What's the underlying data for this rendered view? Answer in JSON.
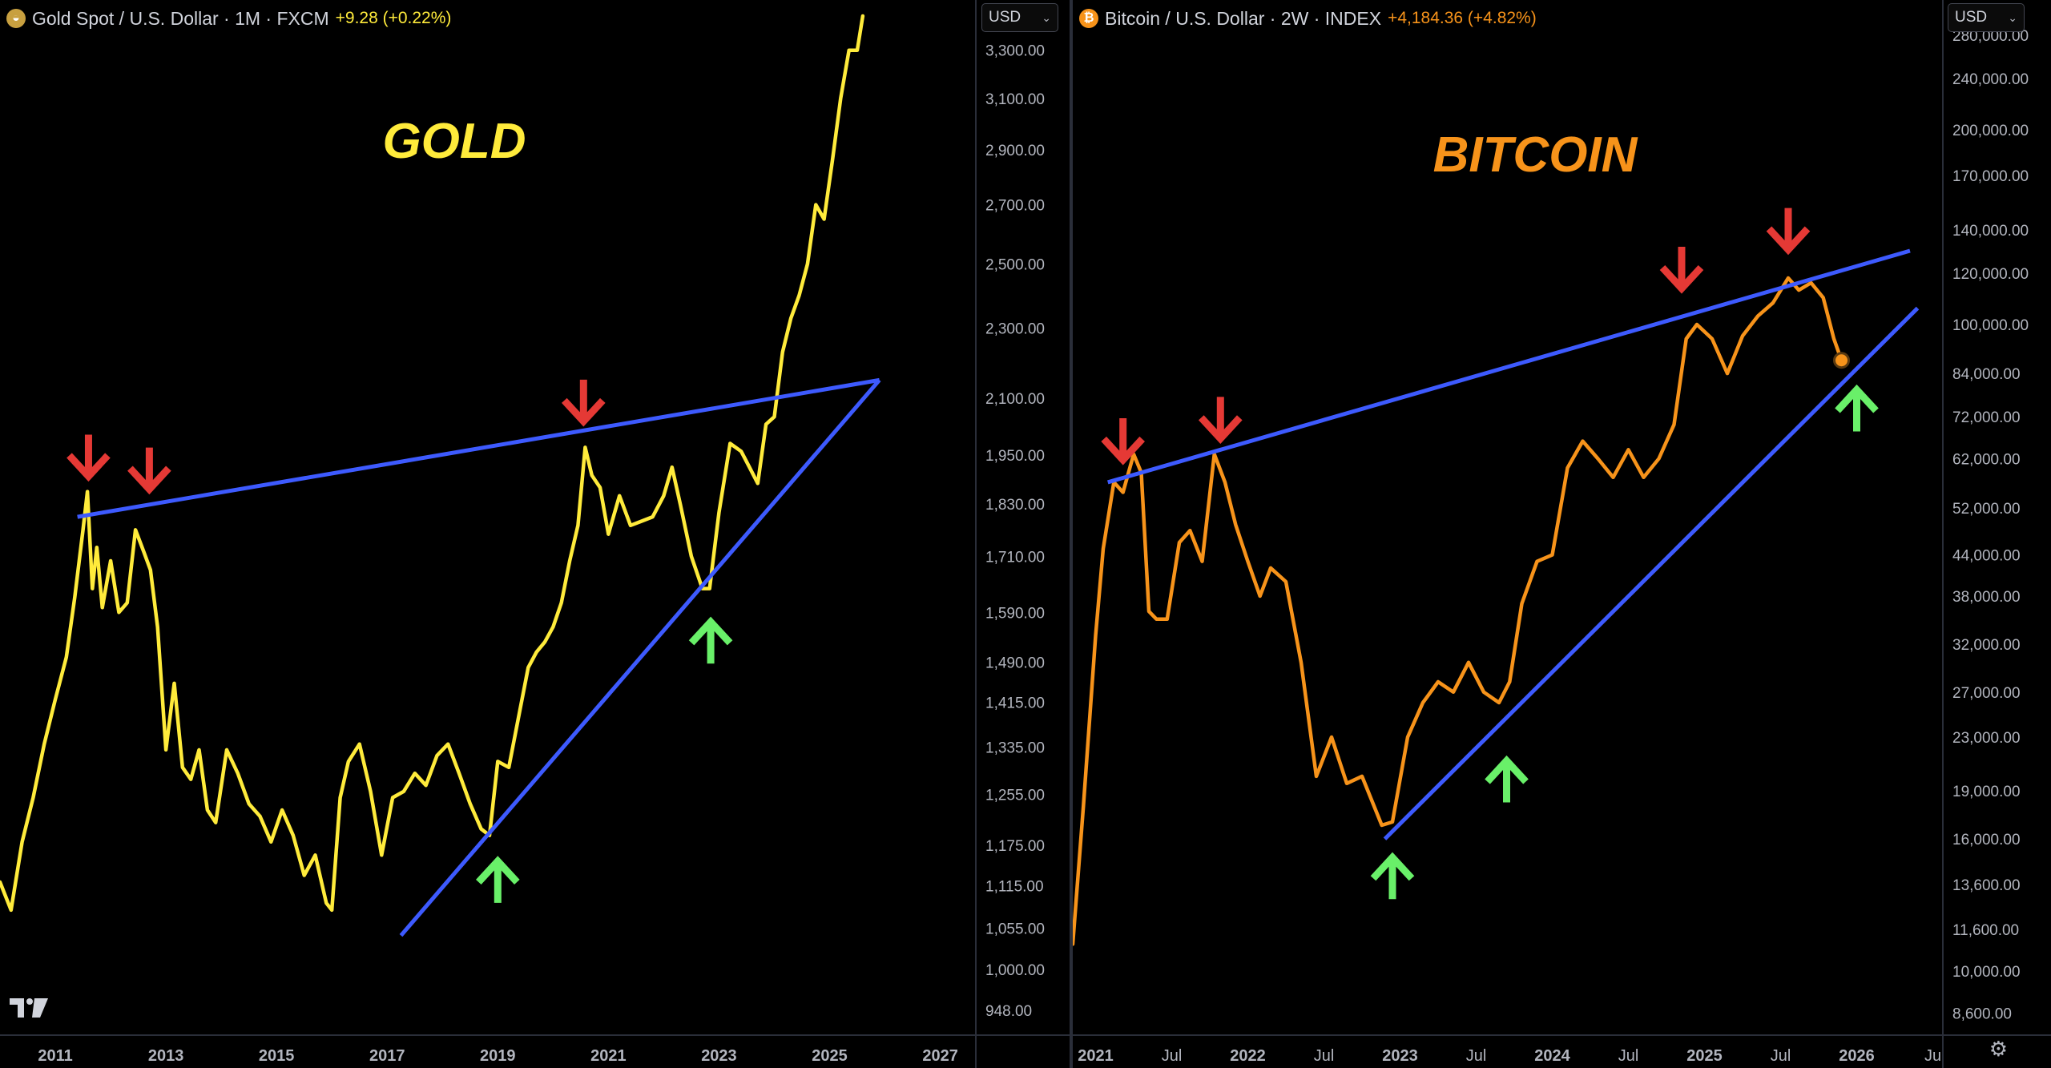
{
  "left": {
    "header": {
      "symbol": "Gold Spot / U.S. Dollar · 1M · FXCM",
      "change": "+9.28 (+0.22%)",
      "change_color": "#ffeb3b"
    },
    "currency": "USD",
    "label": "GOLD",
    "label_color": "#ffeb3b",
    "line_color": "#ffeb3b",
    "yaxis": [
      "3,300.00",
      "3,100.00",
      "2,900.00",
      "2,700.00",
      "2,500.00",
      "2,300.00",
      "2,100.00",
      "1,950.00",
      "1,830.00",
      "1,710.00",
      "1,590.00",
      "1,490.00",
      "1,415.00",
      "1,335.00",
      "1,255.00",
      "1,175.00",
      "1,115.00",
      "1,055.00",
      "1,000.00",
      "948.00"
    ],
    "xaxis": [
      "2011",
      "2013",
      "2015",
      "2017",
      "2019",
      "2021",
      "2023",
      "2025",
      "2027"
    ]
  },
  "right": {
    "header": {
      "symbol": "Bitcoin / U.S. Dollar · 2W · INDEX",
      "change": "+4,184.36 (+4.82%)",
      "change_color": "#f7931a"
    },
    "currency": "USD",
    "label": "BITCOIN",
    "label_color": "#f7931a",
    "line_color": "#f7931a",
    "yaxis": [
      "280,000.00",
      "240,000.00",
      "200,000.00",
      "170,000.00",
      "140,000.00",
      "120,000.00",
      "100,000.00",
      "84,000.00",
      "72,000.00",
      "62,000.00",
      "52,000.00",
      "44,000.00",
      "38,000.00",
      "32,000.00",
      "27,000.00",
      "23,000.00",
      "19,000.00",
      "16,000.00",
      "13,600.00",
      "11,600.00",
      "10,000.00",
      "8,600.00"
    ],
    "xaxis": [
      "2021",
      "Jul",
      "2022",
      "Jul",
      "2023",
      "Jul",
      "2024",
      "Jul",
      "2025",
      "Jul",
      "2026",
      "Ju"
    ]
  },
  "chart_data": [
    {
      "type": "line",
      "title": "Gold Spot / U.S. Dollar · 1M · FXCM",
      "scale": "log",
      "ylim": [
        920,
        3450
      ],
      "xlim": [
        2010.0,
        2027.6
      ],
      "series": [
        {
          "name": "GOLD",
          "color": "#ffeb3b",
          "x": [
            2010.0,
            2010.2,
            2010.4,
            2010.6,
            2010.8,
            2011.0,
            2011.2,
            2011.35,
            2011.5,
            2011.58,
            2011.67,
            2011.75,
            2011.85,
            2012.0,
            2012.15,
            2012.3,
            2012.45,
            2012.6,
            2012.72,
            2012.85,
            2013.0,
            2013.15,
            2013.3,
            2013.45,
            2013.6,
            2013.75,
            2013.9,
            2014.1,
            2014.3,
            2014.5,
            2014.7,
            2014.9,
            2015.1,
            2015.3,
            2015.5,
            2015.7,
            2015.9,
            2016.0,
            2016.15,
            2016.3,
            2016.5,
            2016.7,
            2016.9,
            2017.1,
            2017.3,
            2017.5,
            2017.7,
            2017.9,
            2018.1,
            2018.3,
            2018.5,
            2018.7,
            2018.85,
            2019.0,
            2019.2,
            2019.4,
            2019.55,
            2019.7,
            2019.85,
            2020.0,
            2020.15,
            2020.3,
            2020.45,
            2020.58,
            2020.7,
            2020.85,
            2021.0,
            2021.2,
            2021.4,
            2021.6,
            2021.8,
            2022.0,
            2022.15,
            2022.3,
            2022.5,
            2022.7,
            2022.83,
            2023.0,
            2023.2,
            2023.4,
            2023.55,
            2023.7,
            2023.85,
            2024.0,
            2024.15,
            2024.3,
            2024.45,
            2024.6,
            2024.75,
            2024.9,
            2025.05,
            2025.2,
            2025.35,
            2025.5,
            2025.6
          ],
          "y": [
            1120,
            1080,
            1180,
            1250,
            1340,
            1420,
            1500,
            1620,
            1770,
            1860,
            1640,
            1730,
            1600,
            1700,
            1590,
            1610,
            1770,
            1720,
            1680,
            1560,
            1330,
            1450,
            1300,
            1280,
            1330,
            1230,
            1210,
            1330,
            1290,
            1240,
            1220,
            1180,
            1230,
            1190,
            1130,
            1160,
            1090,
            1080,
            1250,
            1310,
            1340,
            1260,
            1160,
            1250,
            1260,
            1290,
            1270,
            1320,
            1340,
            1290,
            1240,
            1200,
            1190,
            1310,
            1300,
            1400,
            1480,
            1510,
            1530,
            1560,
            1610,
            1700,
            1780,
            1970,
            1900,
            1870,
            1760,
            1850,
            1780,
            1790,
            1800,
            1850,
            1920,
            1830,
            1710,
            1640,
            1640,
            1810,
            1980,
            1960,
            1920,
            1880,
            2030,
            2050,
            2230,
            2330,
            2400,
            2500,
            2700,
            2650,
            2860,
            3100,
            3300,
            3300,
            3450
          ]
        }
      ]
    },
    {
      "type": "line",
      "title": "Bitcoin / U.S. Dollar · 2W · INDEX",
      "scale": "log",
      "ylim": [
        8000,
        300000
      ],
      "xlim": [
        2020.85,
        2026.55
      ],
      "series": [
        {
          "name": "BITCOIN",
          "color": "#f7931a",
          "x": [
            2020.85,
            2020.92,
            2021.0,
            2021.05,
            2021.12,
            2021.18,
            2021.25,
            2021.3,
            2021.35,
            2021.4,
            2021.47,
            2021.55,
            2021.62,
            2021.7,
            2021.78,
            2021.85,
            2021.92,
            2022.0,
            2022.08,
            2022.15,
            2022.25,
            2022.35,
            2022.45,
            2022.55,
            2022.65,
            2022.75,
            2022.88,
            2022.95,
            2023.05,
            2023.15,
            2023.25,
            2023.35,
            2023.45,
            2023.55,
            2023.65,
            2023.72,
            2023.8,
            2023.9,
            2024.0,
            2024.1,
            2024.2,
            2024.3,
            2024.4,
            2024.5,
            2024.6,
            2024.7,
            2024.8,
            2024.88,
            2024.95,
            2025.05,
            2025.15,
            2025.25,
            2025.35,
            2025.45,
            2025.55,
            2025.62,
            2025.7,
            2025.78,
            2025.85,
            2025.9
          ],
          "y": [
            11000,
            18000,
            33000,
            45000,
            57000,
            55000,
            63000,
            59000,
            36000,
            35000,
            35000,
            46000,
            48000,
            43000,
            63000,
            57000,
            49000,
            43000,
            38000,
            42000,
            40000,
            30000,
            20000,
            23000,
            19500,
            20000,
            16800,
            17000,
            23000,
            26000,
            28000,
            27000,
            30000,
            27000,
            26000,
            28000,
            37000,
            43000,
            44000,
            60000,
            66000,
            62000,
            58000,
            64000,
            58000,
            62000,
            70000,
            95000,
            100000,
            95000,
            84000,
            96000,
            103000,
            108000,
            118000,
            113000,
            116000,
            110000,
            95000,
            88000
          ]
        }
      ]
    }
  ]
}
